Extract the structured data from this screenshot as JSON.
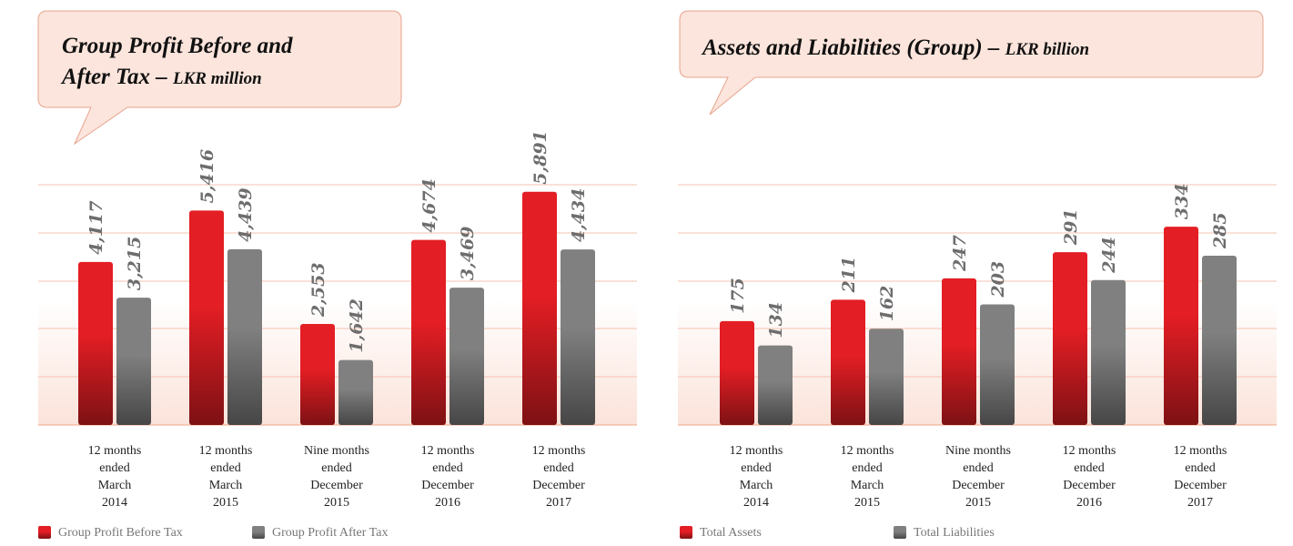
{
  "chart_data": [
    {
      "type": "bar",
      "title": "Group Profit Before and After Tax",
      "subtitle": "LKR million",
      "categories": [
        "12 months\nended\nMarch\n2014",
        "12 months\nended\nMarch\n2015",
        "Nine months\nended\nDecember\n2015",
        "12 months\nended\nDecember\n2016",
        "12 months\nended\nDecember\n2017"
      ],
      "series": [
        {
          "name": "Group Profit Before Tax",
          "color": "#e31e24",
          "values": [
            4117,
            5416,
            2553,
            4674,
            5891
          ],
          "value_labels": [
            "4,117",
            "5,416",
            "2,553",
            "4,674",
            "5,891"
          ]
        },
        {
          "name": "Group Profit After Tax",
          "color": "#808080",
          "values": [
            3215,
            4439,
            1642,
            3469,
            4434
          ],
          "value_labels": [
            "3,215",
            "4,439",
            "1,642",
            "3,469",
            "4,434"
          ]
        }
      ],
      "ylim": [
        0,
        6000
      ]
    },
    {
      "type": "bar",
      "title": "Assets and Liabilities (Group)",
      "subtitle": "LKR billion",
      "categories": [
        "12 months\nended\nMarch\n2014",
        "12 months\nended\nMarch\n2015",
        "Nine months\nended\nDecember\n2015",
        "12 months\nended\nDecember\n2016",
        "12 months\nended\nDecember\n2017"
      ],
      "series": [
        {
          "name": "Total Assets",
          "color": "#e31e24",
          "values": [
            175,
            211,
            247,
            291,
            334
          ]
        },
        {
          "name": "Total Liabilities",
          "color": "#808080",
          "values": [
            134,
            162,
            203,
            244,
            285
          ]
        }
      ],
      "ylim": [
        0,
        400
      ]
    }
  ]
}
